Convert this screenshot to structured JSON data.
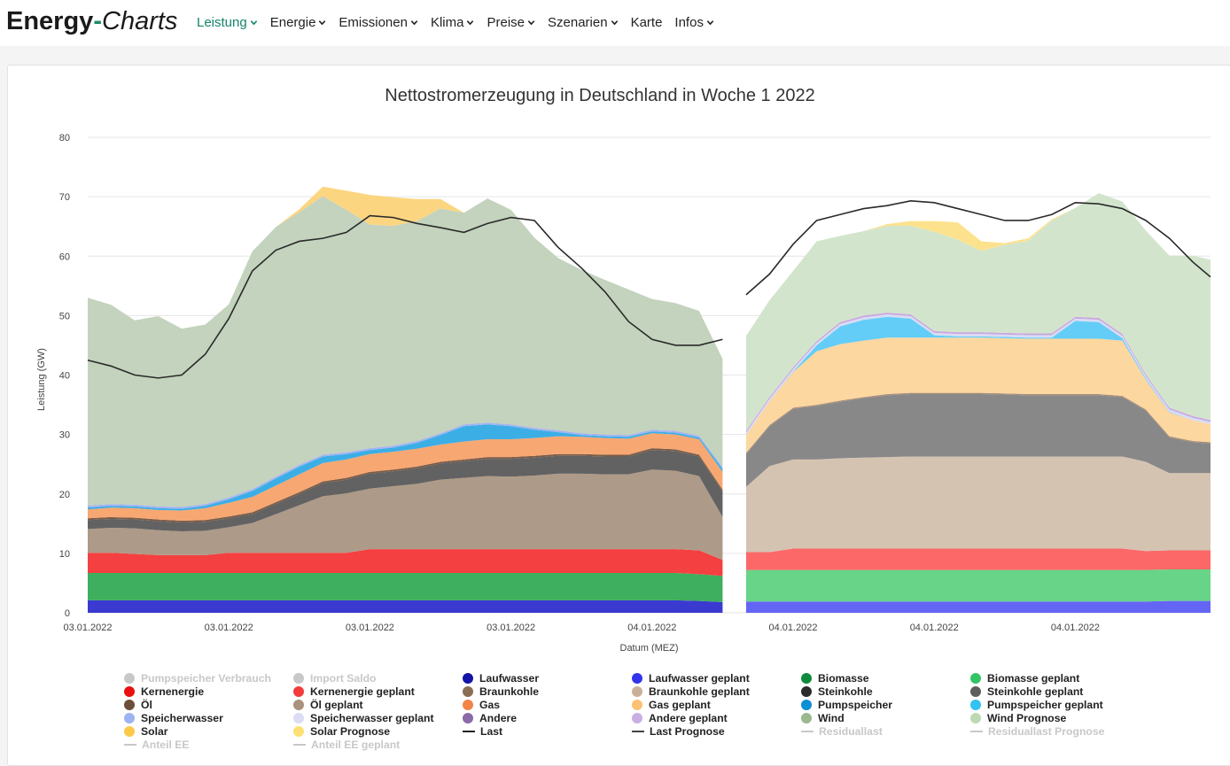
{
  "brand": {
    "part1": "Energy",
    "dash": "-",
    "part2": "Charts"
  },
  "nav": [
    {
      "label": "Leistung",
      "active": true,
      "dropdown": true
    },
    {
      "label": "Energie",
      "dropdown": true
    },
    {
      "label": "Emissionen",
      "dropdown": true
    },
    {
      "label": "Klima",
      "dropdown": true
    },
    {
      "label": "Preise",
      "dropdown": true
    },
    {
      "label": "Szenarien",
      "dropdown": true
    },
    {
      "label": "Karte",
      "dropdown": false
    },
    {
      "label": "Infos",
      "dropdown": true
    }
  ],
  "colors": {
    "accent": "#15856a",
    "grid": "#e6e6e6",
    "axis_text": "#444444",
    "hidden_legend": "#c8c8c8"
  },
  "chart_data": {
    "type": "area",
    "title": "Nettostromerzeugung in Deutschland in Woche 1 2022",
    "xlabel": "Datum (MEZ)",
    "ylabel": "Leistung (GW)",
    "ylim": [
      0,
      80
    ],
    "yticks": [
      0,
      10,
      20,
      30,
      40,
      50,
      60,
      70,
      80
    ],
    "grid": true,
    "stacked": true,
    "x_range_hours": [
      0,
      47.75
    ],
    "x_ticks": [
      {
        "hour": 0,
        "label": "03.01.2022"
      },
      {
        "hour": 6,
        "label": "03.01.2022"
      },
      {
        "hour": 12,
        "label": "03.01.2022"
      },
      {
        "hour": 18,
        "label": "03.01.2022"
      },
      {
        "hour": 24,
        "label": "04.01.2022"
      },
      {
        "hour": 30,
        "label": "04.01.2022"
      },
      {
        "hour": 36,
        "label": "04.01.2022"
      },
      {
        "hour": 42,
        "label": "04.01.2022"
      }
    ],
    "actual": {
      "hours": [
        0,
        1,
        2,
        3,
        4,
        5,
        6,
        7,
        8,
        9,
        10,
        11,
        12,
        13,
        14,
        15,
        16,
        17,
        18,
        19,
        20,
        21,
        22,
        23,
        24,
        25,
        26,
        27
      ],
      "series": [
        {
          "name": "Laufwasser",
          "color": "#3a3ad0",
          "values": [
            2.1,
            2.1,
            2.1,
            2.1,
            2.1,
            2.1,
            2.1,
            2.1,
            2.1,
            2.1,
            2.1,
            2.1,
            2.1,
            2.1,
            2.1,
            2.1,
            2.1,
            2.1,
            2.1,
            2.1,
            2.1,
            2.1,
            2.1,
            2.1,
            2.1,
            2.1,
            2.0,
            1.8
          ]
        },
        {
          "name": "Biomasse",
          "color": "#3daf5e",
          "values": [
            4.6,
            4.6,
            4.6,
            4.6,
            4.6,
            4.6,
            4.6,
            4.6,
            4.6,
            4.6,
            4.6,
            4.6,
            4.6,
            4.6,
            4.6,
            4.6,
            4.6,
            4.6,
            4.6,
            4.6,
            4.6,
            4.6,
            4.6,
            4.6,
            4.6,
            4.6,
            4.5,
            4.4
          ]
        },
        {
          "name": "Kernenergie",
          "color": "#f44040",
          "values": [
            3.4,
            3.4,
            3.2,
            3.0,
            3.0,
            3.0,
            3.4,
            3.4,
            3.4,
            3.4,
            3.4,
            3.4,
            4.0,
            4.0,
            4.0,
            4.0,
            4.0,
            4.0,
            4.0,
            4.0,
            4.0,
            4.0,
            4.0,
            4.0,
            4.0,
            4.0,
            4.0,
            2.7
          ]
        },
        {
          "name": "Braunkohle",
          "color": "#ae9a88",
          "values": [
            4.0,
            4.2,
            4.3,
            4.2,
            4.0,
            4.1,
            4.3,
            5.0,
            6.5,
            8.0,
            9.5,
            10.0,
            10.2,
            10.6,
            11.0,
            11.7,
            12.0,
            12.3,
            12.2,
            12.4,
            12.7,
            12.7,
            12.6,
            12.6,
            13.4,
            13.2,
            12.5,
            7.2
          ]
        },
        {
          "name": "Steinkohle",
          "color": "#626262",
          "values": [
            1.5,
            1.5,
            1.5,
            1.5,
            1.5,
            1.5,
            1.5,
            1.5,
            1.7,
            1.9,
            2.2,
            2.3,
            2.5,
            2.5,
            2.6,
            2.7,
            2.8,
            2.9,
            3.0,
            3.0,
            3.0,
            3.0,
            3.0,
            3.0,
            3.3,
            3.3,
            3.3,
            4.3
          ]
        },
        {
          "name": "Öl",
          "color": "#7b5c48",
          "values": [
            0.3,
            0.3,
            0.3,
            0.3,
            0.3,
            0.3,
            0.3,
            0.3,
            0.3,
            0.3,
            0.3,
            0.3,
            0.3,
            0.3,
            0.3,
            0.3,
            0.3,
            0.3,
            0.3,
            0.3,
            0.3,
            0.3,
            0.3,
            0.3,
            0.3,
            0.3,
            0.3,
            0.3
          ]
        },
        {
          "name": "Gas",
          "color": "#f7a772",
          "values": [
            1.5,
            1.6,
            1.6,
            1.6,
            1.7,
            2.0,
            2.3,
            2.6,
            2.8,
            3.0,
            3.1,
            3.1,
            3.0,
            3.0,
            3.0,
            2.9,
            3.0,
            3.0,
            3.0,
            3.0,
            3.0,
            2.9,
            2.8,
            2.7,
            2.5,
            2.5,
            2.6,
            3.0
          ]
        },
        {
          "name": "Pumpspeicher",
          "color": "#3caee6",
          "values": [
            0.3,
            0.3,
            0.3,
            0.3,
            0.3,
            0.4,
            0.6,
            1.0,
            1.2,
            1.3,
            1.1,
            0.9,
            0.7,
            0.7,
            1.0,
            1.6,
            2.6,
            2.5,
            2.2,
            1.4,
            0.7,
            0.3,
            0.3,
            0.3,
            0.3,
            0.3,
            0.3,
            0.5
          ]
        },
        {
          "name": "Speicherwasser",
          "color": "#a3b3f0",
          "values": [
            0.3,
            0.3,
            0.3,
            0.3,
            0.3,
            0.3,
            0.3,
            0.3,
            0.3,
            0.3,
            0.3,
            0.3,
            0.3,
            0.3,
            0.3,
            0.3,
            0.3,
            0.3,
            0.3,
            0.3,
            0.3,
            0.3,
            0.3,
            0.3,
            0.3,
            0.3,
            0.3,
            0.3
          ]
        },
        {
          "name": "Wind",
          "color": "#c3d3bd",
          "values": [
            35.0,
            33.5,
            31.0,
            32.0,
            30.0,
            30.2,
            32.5,
            40.0,
            42.0,
            42.5,
            43.5,
            40.8,
            37.6,
            37.0,
            37.0,
            37.8,
            35.6,
            37.7,
            36.1,
            32.0,
            29.0,
            27.5,
            26.0,
            24.5,
            22.0,
            21.5,
            21.0,
            18.2
          ]
        },
        {
          "name": "Solar",
          "color": "#fcd580",
          "values": [
            0,
            0,
            0,
            0,
            0,
            0,
            0,
            0,
            0,
            0.5,
            1.6,
            3.2,
            5.0,
            4.8,
            3.7,
            1.6,
            0,
            0,
            0,
            0,
            0,
            0,
            0,
            0,
            0,
            0,
            0,
            0
          ]
        }
      ],
      "last": [
        42.5,
        41.5,
        40.0,
        39.5,
        40.0,
        43.5,
        49.5,
        57.5,
        61.0,
        62.5,
        63.0,
        64.0,
        66.8,
        66.5,
        65.5,
        64.8,
        64.0,
        65.5,
        66.5,
        66.0,
        61.5,
        58.0,
        54.0,
        49.0,
        46.0,
        45.0,
        45.0,
        46.0
      ]
    },
    "forecast": {
      "hours": [
        28,
        29,
        30,
        31,
        32,
        33,
        34,
        35,
        36,
        37,
        38,
        39,
        40,
        41,
        42,
        43,
        44,
        45,
        46,
        47,
        47.75
      ],
      "series": [
        {
          "name": "Laufwasser geplant",
          "color": "#6565f5",
          "values": [
            1.9,
            1.9,
            1.9,
            1.9,
            1.9,
            1.9,
            1.9,
            1.9,
            1.9,
            1.9,
            1.9,
            1.9,
            1.9,
            1.9,
            1.9,
            1.9,
            1.9,
            1.9,
            2.0,
            2.0,
            2.0
          ]
        },
        {
          "name": "Biomasse geplant",
          "color": "#68d488",
          "values": [
            5.3,
            5.3,
            5.3,
            5.3,
            5.3,
            5.3,
            5.3,
            5.3,
            5.3,
            5.3,
            5.3,
            5.3,
            5.3,
            5.3,
            5.3,
            5.3,
            5.3,
            5.3,
            5.3,
            5.3,
            5.3
          ]
        },
        {
          "name": "Kernenergie geplant",
          "color": "#fc6868",
          "values": [
            3.0,
            3.0,
            3.6,
            3.6,
            3.6,
            3.6,
            3.6,
            3.6,
            3.6,
            3.6,
            3.6,
            3.6,
            3.6,
            3.6,
            3.6,
            3.6,
            3.6,
            3.2,
            3.2,
            3.2,
            3.2
          ]
        },
        {
          "name": "Braunkohle geplant",
          "color": "#d5c3b2",
          "values": [
            11.0,
            14.5,
            15.0,
            15.0,
            15.2,
            15.3,
            15.4,
            15.5,
            15.5,
            15.5,
            15.5,
            15.5,
            15.5,
            15.5,
            15.5,
            15.5,
            15.5,
            15.0,
            13.0,
            13.0,
            13.0
          ]
        },
        {
          "name": "Steinkohle geplant",
          "color": "#888888",
          "values": [
            5.5,
            6.7,
            8.5,
            9.0,
            9.5,
            10.0,
            10.4,
            10.5,
            10.5,
            10.5,
            10.5,
            10.4,
            10.3,
            10.3,
            10.3,
            10.3,
            10.0,
            8.6,
            6.0,
            5.2,
            5.0
          ]
        },
        {
          "name": "Öl geplant",
          "color": "#a88d78",
          "values": [
            0.2,
            0.2,
            0.2,
            0.2,
            0.2,
            0.2,
            0.2,
            0.2,
            0.2,
            0.2,
            0.2,
            0.2,
            0.2,
            0.2,
            0.2,
            0.2,
            0.2,
            0.2,
            0.2,
            0.2,
            0.2
          ]
        },
        {
          "name": "Gas geplant",
          "color": "#fdd7a0",
          "values": [
            3.0,
            4.0,
            6.0,
            9.0,
            9.5,
            9.5,
            9.5,
            9.3,
            9.3,
            9.3,
            9.3,
            9.3,
            9.3,
            9.3,
            9.3,
            9.3,
            9.3,
            5.0,
            4.0,
            3.5,
            3.0
          ]
        },
        {
          "name": "Pumpspeicher geplant",
          "color": "#63cdf7",
          "values": [
            0,
            0,
            0.1,
            1.0,
            3.0,
            3.5,
            3.5,
            3.2,
            0.4,
            0.2,
            0.2,
            0.2,
            0.2,
            0.2,
            3.0,
            2.8,
            0.4,
            0.2,
            0.1,
            0,
            0
          ]
        },
        {
          "name": "Speicherwasser geplant",
          "color": "#d8dcf5",
          "values": [
            0.4,
            0.4,
            0.4,
            0.4,
            0.4,
            0.4,
            0.4,
            0.4,
            0.4,
            0.4,
            0.4,
            0.4,
            0.4,
            0.4,
            0.4,
            0.4,
            0.4,
            0.4,
            0.4,
            0.4,
            0.4
          ]
        },
        {
          "name": "Andere geplant",
          "color": "#c9a8e0",
          "values": [
            0.3,
            0.3,
            0.3,
            0.3,
            0.3,
            0.3,
            0.3,
            0.3,
            0.3,
            0.3,
            0.3,
            0.3,
            0.3,
            0.3,
            0.3,
            0.3,
            0.3,
            0.3,
            0.3,
            0.3,
            0.3
          ]
        },
        {
          "name": "Wind Prognose",
          "color": "#d3e4cd",
          "values": [
            16.0,
            16.3,
            16.2,
            16.8,
            14.5,
            14.2,
            14.6,
            14.9,
            16.7,
            15.6,
            13.7,
            14.8,
            15.6,
            19.0,
            18.3,
            21.0,
            22.3,
            24.2,
            25.6,
            27.0,
            27.0
          ]
        },
        {
          "name": "Solar Prognose",
          "color": "#fde28e",
          "values": [
            0,
            0,
            0,
            0,
            0,
            0,
            0.3,
            0.8,
            1.8,
            2.9,
            1.6,
            0.3,
            0.4,
            0.2,
            0,
            0,
            0,
            0,
            0,
            0,
            0
          ]
        }
      ],
      "last": [
        53.5,
        57.0,
        62.0,
        66.0,
        67.0,
        68.0,
        68.5,
        69.3,
        69.0,
        68.0,
        67.0,
        66.0,
        66.0,
        67.0,
        69.0,
        68.8,
        68.0,
        66.0,
        63.0,
        59.0,
        56.5
      ]
    },
    "legend": [
      {
        "label": "Pumpspeicher Verbrauch",
        "color": "#c8c8c8",
        "hidden": true
      },
      {
        "label": "Import Saldo",
        "color": "#c8c8c8",
        "hidden": true
      },
      {
        "label": "Laufwasser",
        "color": "#1414a8"
      },
      {
        "label": "Laufwasser geplant",
        "color": "#3333ee"
      },
      {
        "label": "Biomasse",
        "color": "#0d8a3a"
      },
      {
        "label": "Biomasse geplant",
        "color": "#33c466"
      },
      {
        "label": "Kernenergie",
        "color": "#e81010"
      },
      {
        "label": "Kernenergie geplant",
        "color": "#f23b3b"
      },
      {
        "label": "Braunkohle",
        "color": "#8a6e52"
      },
      {
        "label": "Braunkohle geplant",
        "color": "#c9b199"
      },
      {
        "label": "Steinkohle",
        "color": "#2b2b2b"
      },
      {
        "label": "Steinkohle geplant",
        "color": "#5e5e5e"
      },
      {
        "label": "Öl",
        "color": "#6b4f3a"
      },
      {
        "label": "Öl geplant",
        "color": "#a8917d"
      },
      {
        "label": "Gas",
        "color": "#f08545"
      },
      {
        "label": "Gas geplant",
        "color": "#fcc173"
      },
      {
        "label": "Pumpspeicher",
        "color": "#0d8fd6"
      },
      {
        "label": "Pumpspeicher geplant",
        "color": "#33c2f2"
      },
      {
        "label": "Speicherwasser",
        "color": "#9eb4f2"
      },
      {
        "label": "Speicherwasser geplant",
        "color": "#dcdcf7"
      },
      {
        "label": "Andere",
        "color": "#8a6aa8"
      },
      {
        "label": "Andere geplant",
        "color": "#c9aee3"
      },
      {
        "label": "Wind",
        "color": "#9ab98f"
      },
      {
        "label": "Wind Prognose",
        "color": "#bdd9b3"
      },
      {
        "label": "Solar",
        "color": "#fcc94a"
      },
      {
        "label": "Solar Prognose",
        "color": "#fde073"
      },
      {
        "label": "Last",
        "color": "#222222",
        "line": true
      },
      {
        "label": "Last Prognose",
        "color": "#444444",
        "line": true
      },
      {
        "label": "Residuallast",
        "color": "#c8c8c8",
        "line": true,
        "hidden": true
      },
      {
        "label": "Residuallast Prognose",
        "color": "#c8c8c8",
        "line": true,
        "hidden": true
      },
      {
        "label": "Anteil EE",
        "color": "#c8c8c8",
        "line": true,
        "hidden": true
      },
      {
        "label": "Anteil EE geplant",
        "color": "#c8c8c8",
        "line": true,
        "hidden": true
      }
    ]
  }
}
